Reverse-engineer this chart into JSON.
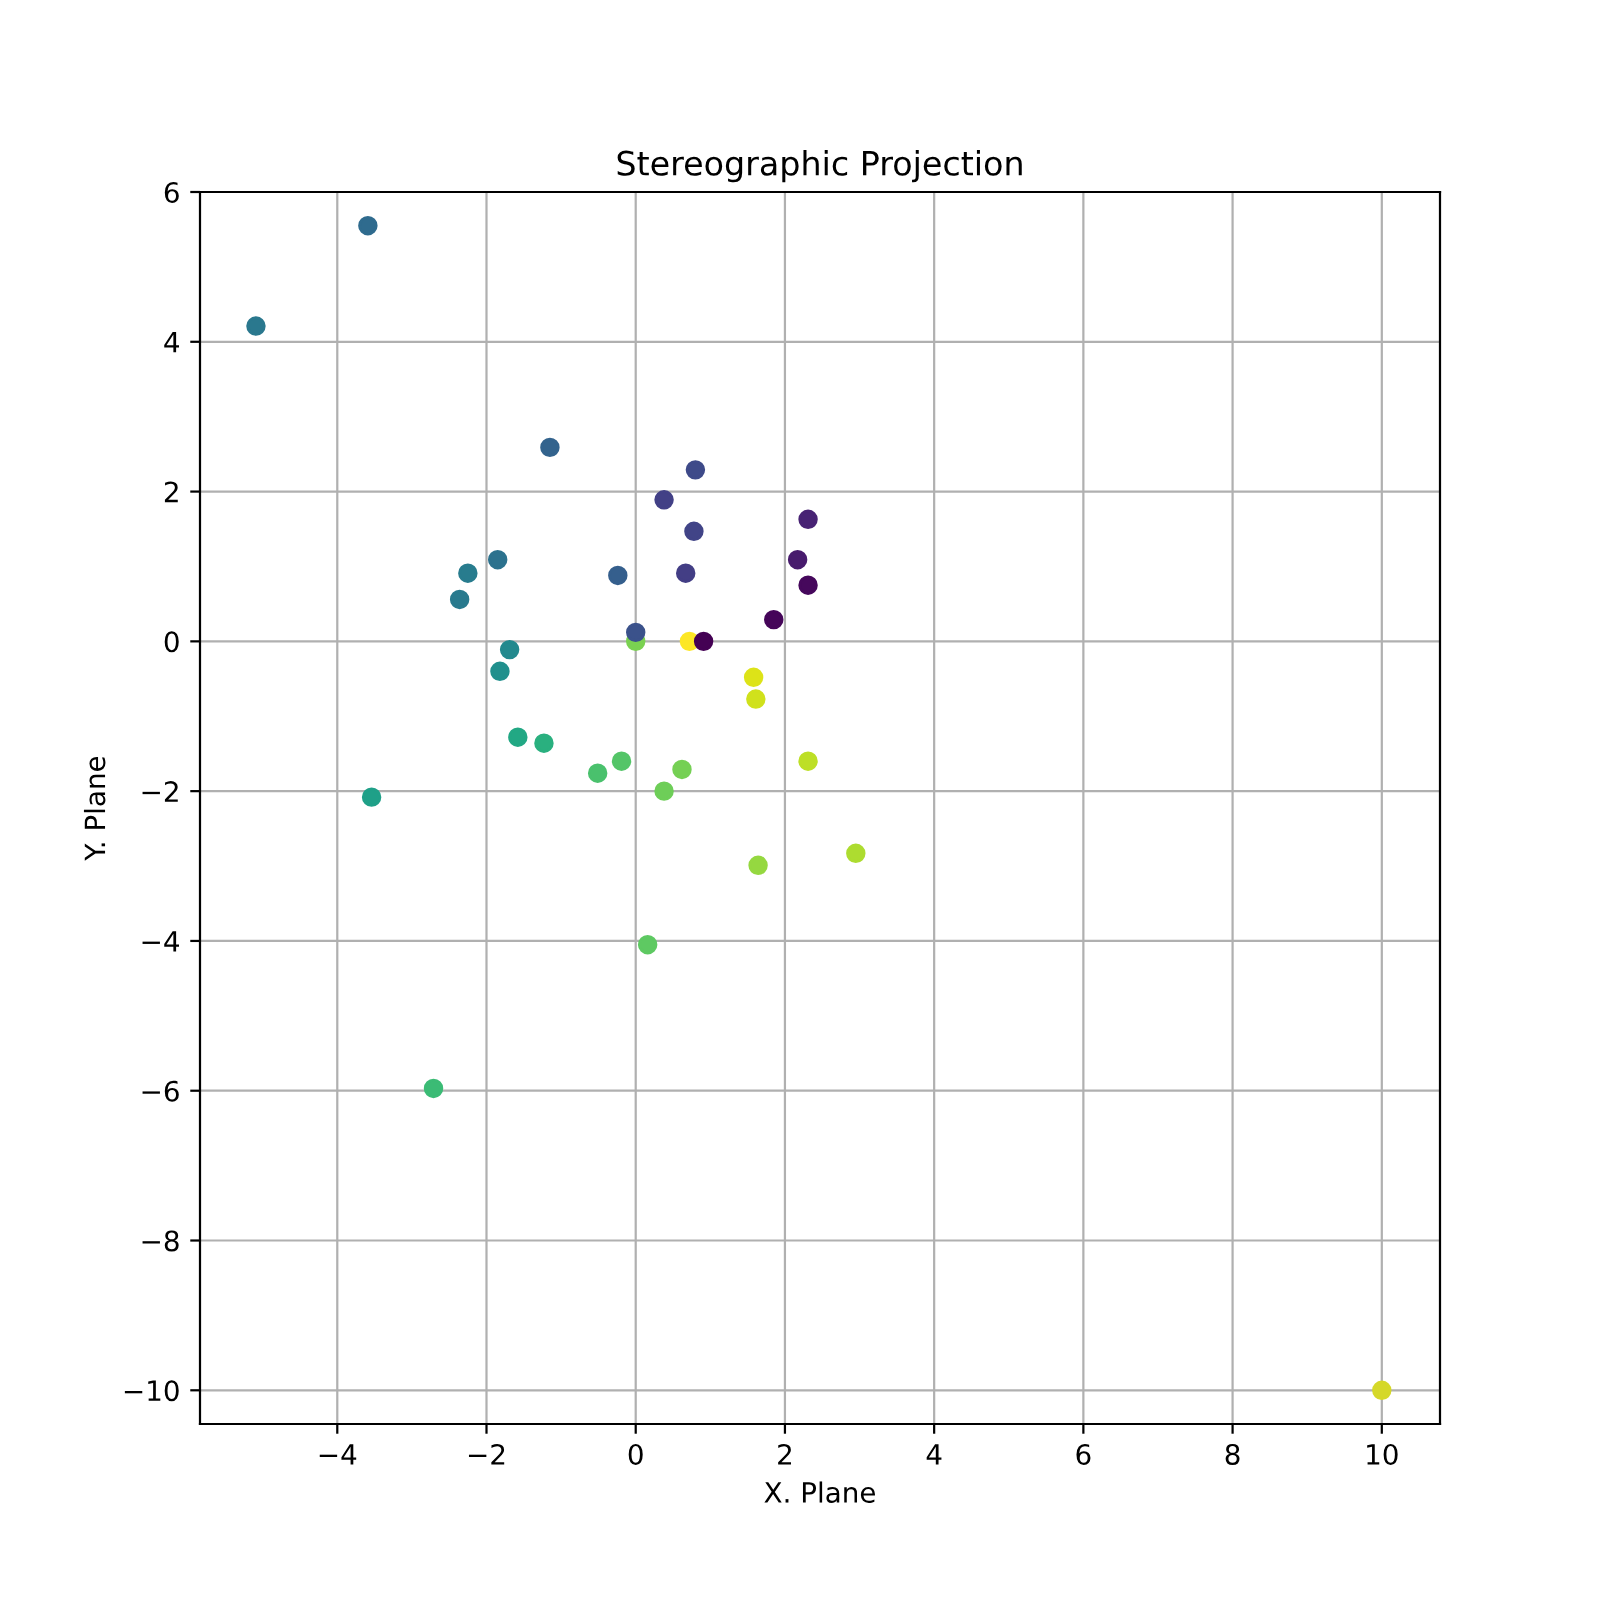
{
  "chart_data": {
    "type": "scatter",
    "title": "Stereographic Projection",
    "xlabel": "X. Plane",
    "ylabel": "Y. Plane",
    "x": [
      -3.59,
      -5.09,
      -1.15,
      0.8,
      0.38,
      0.78,
      2.31,
      2.17,
      2.31,
      1.85,
      0.91,
      0.72,
      0,
      0,
      -0.24,
      0.67,
      -1.85,
      -2.25,
      -2.36,
      -1.69,
      -1.82,
      1.58,
      1.61,
      -1.58,
      -1.23,
      -0.51,
      -0.19,
      0.62,
      0.38,
      2.31,
      -3.54,
      1.64,
      2.95,
      0.16,
      -2.71,
      10.0
    ],
    "values": [
      5.55,
      4.21,
      2.59,
      2.29,
      1.89,
      1.47,
      1.63,
      1.09,
      0.75,
      0.29,
      0,
      0,
      0.12,
      0,
      0.88,
      0.91,
      1.09,
      0.91,
      0.56,
      -0.11,
      -0.4,
      -0.48,
      -0.77,
      -1.28,
      -1.36,
      -1.76,
      -1.6,
      -1.71,
      -2.0,
      -1.6,
      -2.08,
      -2.99,
      -2.83,
      -4.05,
      -5.97,
      -10.0
    ],
    "colors": [
      "#2f6b8e",
      "#2a788e",
      "#33638d",
      "#3e4a89",
      "#424086",
      "#414487",
      "#482374",
      "#481b6d",
      "#46085c",
      "#450559",
      "#440154",
      "#fde725",
      "#3b528b",
      "#7ad151",
      "#355f8d",
      "#433e85",
      "#2c728e",
      "#287c8e",
      "#297a8e",
      "#23898e",
      "#21908d",
      "#dde318",
      "#d0e11c",
      "#22a884",
      "#2ab07f",
      "#4ac16d",
      "#54c568",
      "#75d054",
      "#6ece58",
      "#bddf26",
      "#1fa088",
      "#95d840",
      "#addc30",
      "#5ec962",
      "#3bbb75",
      "#d5d829"
    ],
    "xlim": [
      -5.84,
      10.78
    ],
    "ylim": [
      -10.45,
      6.0
    ],
    "xticks": [
      {
        "value": -4,
        "label": "−4"
      },
      {
        "value": -2,
        "label": "−2"
      },
      0,
      2,
      4,
      6,
      8,
      10
    ],
    "yticks": [
      {
        "value": -10,
        "label": "−10"
      },
      {
        "value": -8,
        "label": "−8"
      },
      {
        "value": -6,
        "label": "−6"
      },
      {
        "value": -4,
        "label": "−4"
      },
      {
        "value": -2,
        "label": "−2"
      },
      0,
      2,
      4,
      6
    ],
    "grid": true,
    "marker": "circle"
  }
}
